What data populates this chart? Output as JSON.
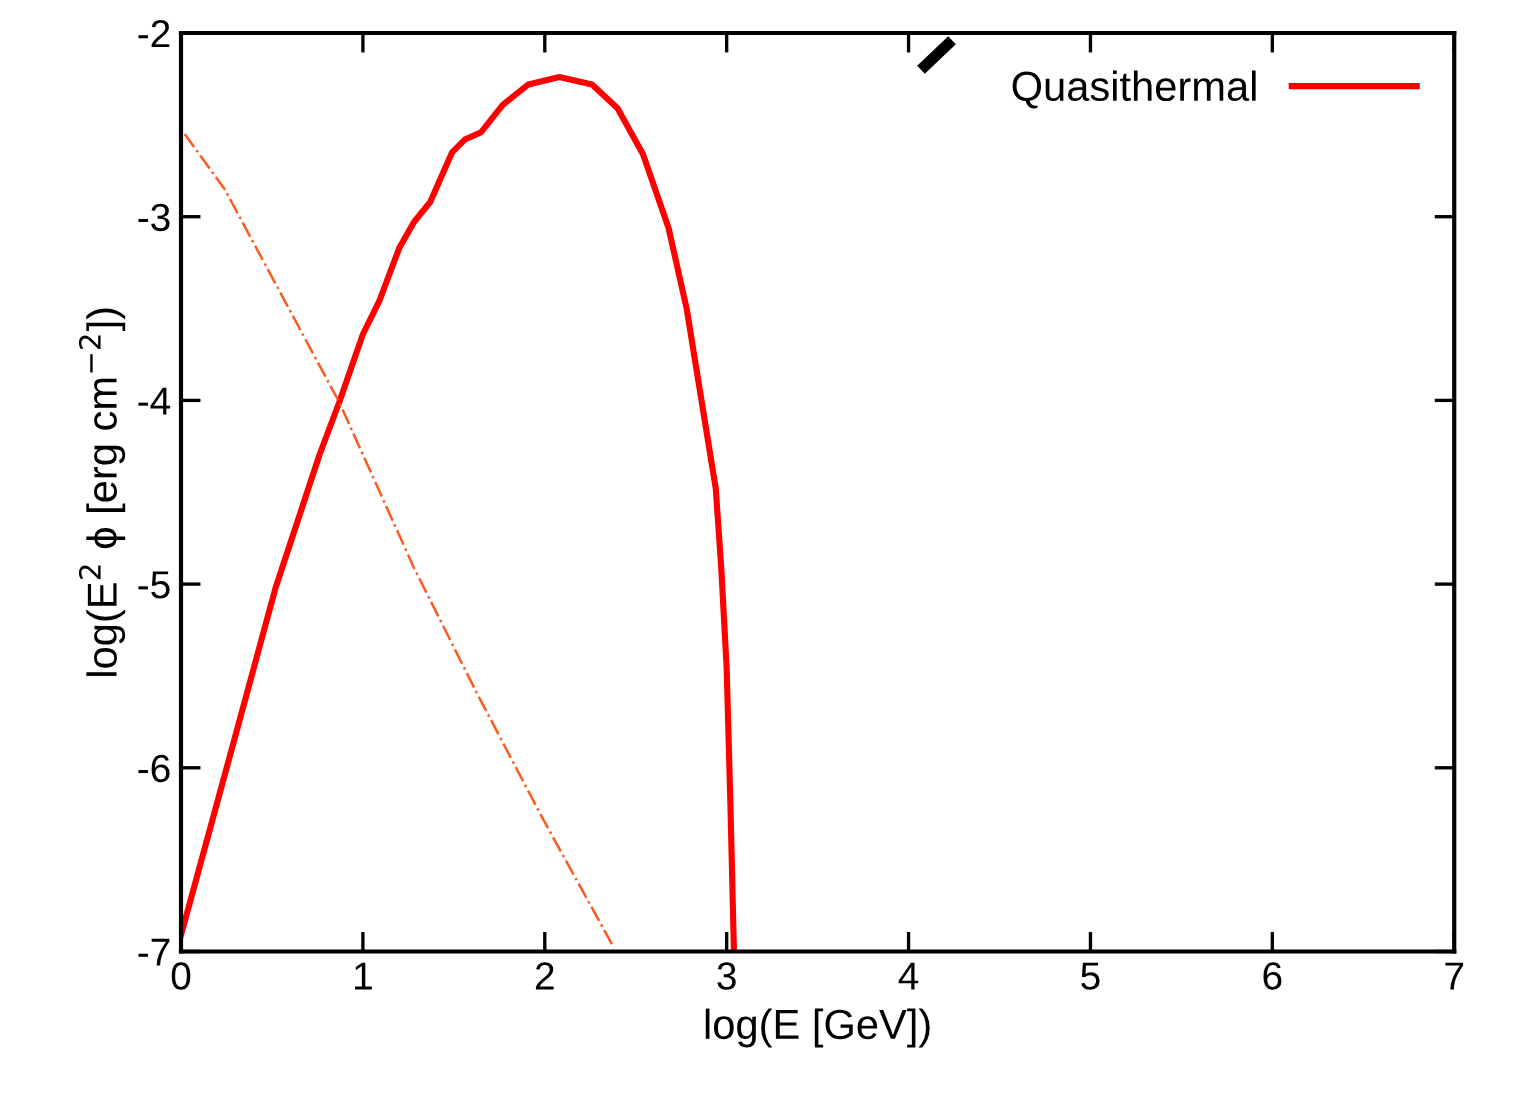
{
  "chart_data": {
    "type": "line",
    "xlabel": "log(E [GeV])",
    "ylabel": "log(E$^{2}$ ϕ [erg cm$^{−2}$])",
    "xlim": [
      0,
      7
    ],
    "ylim": [
      -7,
      -2
    ],
    "xticks": [
      0,
      1,
      2,
      3,
      4,
      5,
      6,
      7
    ],
    "yticks": [
      -7,
      -6,
      -5,
      -4,
      -3,
      -2
    ],
    "grid": false,
    "legend": "top right",
    "marker": "none",
    "series": [
      {
        "name": "Quasithermal",
        "color": "#ff0000",
        "line_style": "solid",
        "x": [
          0,
          0.24,
          0.52,
          0.76,
          0.87,
          1.0,
          1.09,
          1.2,
          1.28,
          1.37,
          1.49,
          1.56,
          1.65,
          1.77,
          1.91,
          2.08,
          2.26,
          2.4,
          2.54,
          2.68,
          2.78,
          2.85,
          2.94,
          2.97,
          3.0,
          3.02,
          3.04
        ],
        "values": [
          -6.91,
          -6.04,
          -5.02,
          -4.3,
          -4.01,
          -3.64,
          -3.46,
          -3.17,
          -3.03,
          -2.92,
          -2.65,
          -2.58,
          -2.54,
          -2.39,
          -2.28,
          -2.24,
          -2.28,
          -2.41,
          -2.66,
          -3.06,
          -3.5,
          -3.93,
          -4.48,
          -4.91,
          -5.46,
          -6.18,
          -7.0
        ]
      },
      {
        "color": "#ff5a1e",
        "line_style": "dashdot",
        "x": [
          0.02,
          0.24,
          0.87,
          1.28,
          1.63,
          1.98,
          2.38
        ],
        "values": [
          -2.55,
          -2.85,
          -4.01,
          -4.91,
          -5.6,
          -6.26,
          -6.98
        ]
      }
    ]
  }
}
